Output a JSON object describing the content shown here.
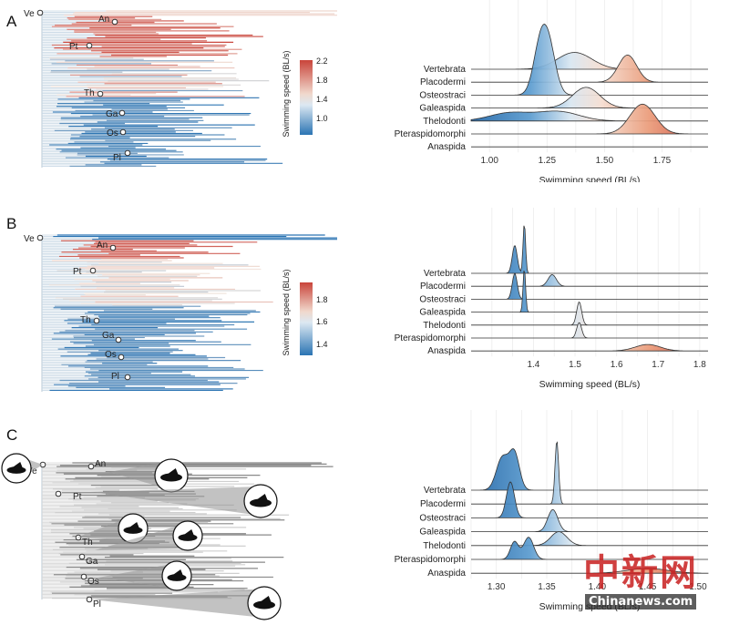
{
  "panels": [
    {
      "label": "A",
      "colorbar": {
        "title": "Swimming speed (BL/s)",
        "ticks": [
          "2.2",
          "1.8",
          "1.4",
          "1.0"
        ]
      }
    },
    {
      "label": "B",
      "colorbar": {
        "title": "Swimming speed (BL/s)",
        "ticks": [
          "1.8",
          "1.6",
          "1.4"
        ]
      }
    },
    {
      "label": "C"
    }
  ],
  "clade_labels": [
    "Ve",
    "An",
    "Pt",
    "Th",
    "Ga",
    "Os",
    "Pl"
  ],
  "colors": {
    "high": "#c9443a",
    "mid": "#f3e6de",
    "low": "#2b74b3",
    "gray": "#7a7a7a"
  },
  "watermark": {
    "cn": "中新网",
    "en": "Chinanews.com"
  },
  "chart_data": [
    {
      "type": "density_ridgeline",
      "panel": "A",
      "xlabel": "Swimming speed (BL/s)",
      "xlim": [
        0.92,
        1.95
      ],
      "ticks": [
        1.0,
        1.25,
        1.5,
        1.75
      ],
      "tick_labels": [
        "1.00",
        "1.25",
        "1.50",
        "1.75"
      ],
      "categories": [
        "Vertebrata",
        "Placodermi",
        "Osteostraci",
        "Galeaspida",
        "Thelodonti",
        "Pteraspidomorphi",
        "Anaspida"
      ],
      "series": [
        {
          "name": "Vertebrata",
          "peaks": [
            [
              1.37,
              0.075,
              1.0
            ]
          ],
          "height": 1.3
        },
        {
          "name": "Placodermi",
          "peaks": [
            [
              1.6,
              0.04,
              1.0
            ]
          ],
          "height": 2.1
        },
        {
          "name": "Osteostraci",
          "peaks": [
            [
              1.22,
              0.03,
              1.0
            ],
            [
              1.26,
              0.03,
              0.9
            ]
          ],
          "height": 3.6
        },
        {
          "name": "Galeaspida",
          "peaks": [
            [
              1.42,
              0.06,
              1.0
            ]
          ],
          "height": 1.6
        },
        {
          "name": "Thelodonti",
          "peaks": [
            [
              1.09,
              0.09,
              0.7
            ],
            [
              1.3,
              0.09,
              0.8
            ]
          ],
          "height": 0.9
        },
        {
          "name": "Pteraspidomorphi",
          "peaks": [
            [
              1.665,
              0.055,
              1.0
            ]
          ],
          "height": 2.3
        },
        {
          "name": "Anaspida",
          "peaks": [
            [
              1.665,
              0.055,
              1.0
            ]
          ],
          "height": 0
        }
      ]
    },
    {
      "type": "density_ridgeline",
      "panel": "B",
      "xlabel": "Swimming speed (BL/s)",
      "xlim": [
        1.25,
        1.82
      ],
      "ticks": [
        1.4,
        1.5,
        1.6,
        1.7,
        1.8
      ],
      "tick_labels": [
        "1.4",
        "1.5",
        "1.6",
        "1.7",
        "1.8"
      ],
      "categories": [
        "Vertebrata",
        "Placodermi",
        "Osteostraci",
        "Galeaspida",
        "Thelodonti",
        "Pteraspidomorphi",
        "Anaspida"
      ],
      "series": [
        {
          "name": "Vertebrata",
          "peaks": [
            [
              1.355,
              0.006,
              1.0
            ],
            [
              1.378,
              0.003,
              1.8
            ]
          ],
          "height": 3.9
        },
        {
          "name": "Placodermi",
          "peaks": [
            [
              1.445,
              0.01,
              1.0
            ]
          ],
          "height": 0.9
        },
        {
          "name": "Osteostraci",
          "peaks": [
            [
              1.355,
              0.006,
              1.0
            ]
          ],
          "height": 2.0
        },
        {
          "name": "Galeaspida",
          "peaks": [
            [
              1.378,
              0.003,
              1.0
            ]
          ],
          "height": 3.4
        },
        {
          "name": "Thelodonti",
          "peaks": [
            [
              1.51,
              0.006,
              1.0
            ]
          ],
          "height": 1.8
        },
        {
          "name": "Pteraspidomorphi",
          "peaks": [
            [
              1.51,
              0.006,
              1.0
            ]
          ],
          "height": 1.2
        },
        {
          "name": "Anaspida",
          "peaks": [
            [
              1.675,
              0.03,
              1.0
            ]
          ],
          "height": 0.5
        }
      ]
    },
    {
      "type": "density_ridgeline",
      "panel": "C",
      "xlabel": "Swimming speed (BL/s)",
      "xlim": [
        1.275,
        1.51
      ],
      "ticks": [
        1.3,
        1.35,
        1.4,
        1.45,
        1.5
      ],
      "tick_labels": [
        "1.30",
        "1.35",
        "1.40",
        "1.45",
        "1.50"
      ],
      "categories": [
        "Vertebrata",
        "Placodermi",
        "Osteostraci",
        "Galeaspida",
        "Thelodonti",
        "Pteraspidomorphi",
        "Anaspida"
      ],
      "series": [
        {
          "name": "Vertebrata",
          "peaks": [
            [
              1.306,
              0.006,
              0.9
            ],
            [
              1.318,
              0.005,
              1.0
            ]
          ],
          "height": 2.6
        },
        {
          "name": "Placodermi",
          "peaks": [
            [
              1.36,
              0.0018,
              1.0
            ]
          ],
          "height": 4.6
        },
        {
          "name": "Osteostraci",
          "peaks": [
            [
              1.314,
              0.004,
              1.0
            ]
          ],
          "height": 2.6
        },
        {
          "name": "Galeaspida",
          "peaks": [
            [
              1.356,
              0.005,
              1.0
            ]
          ],
          "height": 1.6
        },
        {
          "name": "Thelodonti",
          "peaks": [
            [
              1.362,
              0.008,
              1.0
            ]
          ],
          "height": 1.0
        },
        {
          "name": "Pteraspidomorphi",
          "peaks": [
            [
              1.318,
              0.004,
              0.8
            ],
            [
              1.332,
              0.005,
              1.0
            ]
          ],
          "height": 1.6
        },
        {
          "name": "Anaspida",
          "peaks": [
            [
              1.45,
              0.02,
              1.0
            ]
          ],
          "height": 0.35
        }
      ]
    }
  ]
}
